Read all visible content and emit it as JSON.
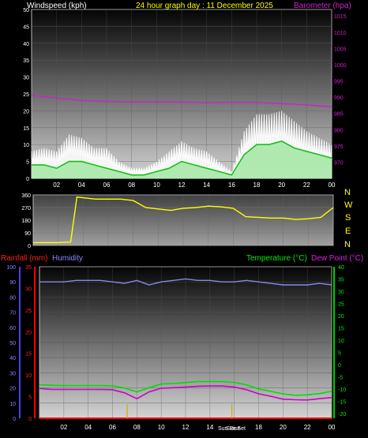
{
  "header": {
    "title_left": "Windspeed (kph)",
    "title_center": "24 hour graph day : 11 December 2025",
    "title_right": "Barometer (hpa)"
  },
  "bottom_header": {
    "rainfall": "Rainfall (mm)",
    "humidity": "Humidity",
    "temperature": "Temperature (°C)",
    "dewpoint": "Dew Point (°C)"
  },
  "colors": {
    "wind_gust": "#ffffff",
    "wind_avg": "#18c018",
    "wind_avg_fill": "#a8e8a8",
    "barometer": "#cc22cc",
    "direction": "#ffff00",
    "humidity": "#8888ee",
    "temperature": "#00dd00",
    "dewpoint": "#cc00cc",
    "rainfall": "#ff0000",
    "sun": "#ccaa00"
  },
  "x_ticks": [
    "02",
    "04",
    "06",
    "08",
    "10",
    "12",
    "14",
    "16",
    "18",
    "20",
    "22",
    "00"
  ],
  "compass": [
    "N",
    "W",
    "S",
    "E",
    "N"
  ],
  "sun_labels": {
    "rise": "Sun Rise",
    "set": "Sun Set"
  },
  "chart_data": [
    {
      "type": "line",
      "name": "wind",
      "y_axis": {
        "label": "Windspeed (kph)",
        "range": [
          0,
          50
        ],
        "ticks": [
          0,
          5,
          10,
          15,
          20,
          25,
          30,
          35,
          40,
          45,
          50
        ]
      },
      "y2_axis": {
        "label": "Barometer (hpa)",
        "range": [
          965,
          1017
        ],
        "ticks": [
          970,
          975,
          980,
          985,
          990,
          995,
          1000,
          1005,
          1010,
          1015
        ]
      },
      "x_range_hours": [
        0,
        24
      ],
      "series": [
        {
          "name": "gust",
          "x": [
            0,
            1,
            2,
            3,
            4,
            5,
            6,
            7,
            8,
            9,
            10,
            11,
            12,
            13,
            14,
            15,
            16,
            17,
            18,
            19,
            20,
            21,
            22,
            23,
            24
          ],
          "y": [
            8,
            9,
            8,
            13,
            12,
            9,
            9,
            5,
            3,
            3,
            5,
            8,
            11,
            9,
            8,
            5,
            2,
            14,
            19,
            19,
            20,
            17,
            14,
            12,
            10
          ]
        },
        {
          "name": "average",
          "x": [
            0,
            1,
            2,
            3,
            4,
            5,
            6,
            7,
            8,
            9,
            10,
            11,
            12,
            13,
            14,
            15,
            16,
            17,
            18,
            19,
            20,
            21,
            22,
            23,
            24
          ],
          "y": [
            4,
            4,
            3,
            5,
            5,
            4,
            3,
            2,
            1,
            1,
            2,
            3,
            5,
            4,
            3,
            2,
            1,
            7,
            10,
            10,
            11,
            9,
            8,
            7,
            6
          ]
        },
        {
          "name": "barometer",
          "x": [
            0,
            2,
            4,
            6,
            8,
            10,
            12,
            14,
            16,
            18,
            20,
            22,
            24
          ],
          "y": [
            990.5,
            989.7,
            989,
            988.7,
            988.5,
            988.6,
            988.5,
            988.3,
            988.4,
            988.4,
            988,
            987.6,
            987
          ]
        }
      ]
    },
    {
      "type": "line",
      "name": "direction",
      "y_axis": {
        "range": [
          0,
          360
        ],
        "ticks": [
          0,
          90,
          180,
          270,
          360
        ]
      },
      "x_range_hours": [
        0,
        24
      ],
      "series": [
        {
          "name": "direction",
          "x": [
            0,
            1,
            2,
            3,
            3.5,
            4,
            5,
            6,
            7,
            8,
            9,
            10,
            11,
            12,
            13,
            14,
            15,
            16,
            17,
            18,
            19,
            20,
            21,
            22,
            23,
            24
          ],
          "y": [
            20,
            20,
            20,
            25,
            345,
            340,
            330,
            330,
            330,
            320,
            270,
            260,
            250,
            265,
            270,
            280,
            275,
            265,
            205,
            200,
            195,
            195,
            185,
            190,
            200,
            270
          ]
        }
      ]
    },
    {
      "type": "line",
      "name": "temperature",
      "y_axis": {
        "label": "Rainfall (mm)",
        "range": [
          0,
          35
        ],
        "ticks": [
          0,
          5,
          10,
          15,
          20,
          25,
          30,
          35
        ]
      },
      "y_axis_humidity": {
        "label": "Humidity",
        "range": [
          0,
          100
        ],
        "ticks": [
          0,
          10,
          20,
          30,
          40,
          50,
          60,
          70,
          80,
          90,
          100
        ]
      },
      "y2_axis": {
        "label": "Temperature (°C)",
        "range": [
          -22,
          40
        ],
        "ticks": [
          -20,
          -15,
          -10,
          -5,
          0,
          5,
          10,
          15,
          20,
          25,
          30,
          35,
          40
        ]
      },
      "x_range_hours": [
        0,
        24
      ],
      "series": [
        {
          "name": "humidity",
          "x": [
            0,
            1,
            2,
            3,
            4,
            5,
            6,
            7,
            8,
            9,
            10,
            11,
            12,
            13,
            14,
            15,
            16,
            17,
            18,
            19,
            20,
            21,
            22,
            23,
            24
          ],
          "y": [
            90,
            90,
            90,
            91,
            91,
            91,
            90,
            89,
            91,
            88,
            90,
            91,
            92,
            91,
            91,
            90,
            90,
            91,
            90,
            89,
            88,
            88,
            88,
            89,
            88
          ]
        },
        {
          "name": "temperature",
          "x": [
            0,
            1,
            2,
            3,
            4,
            5,
            6,
            7,
            8,
            9,
            10,
            11,
            12,
            13,
            14,
            15,
            16,
            17,
            18,
            19,
            20,
            21,
            22,
            23,
            24
          ],
          "y": [
            -8.3,
            -8.5,
            -8.6,
            -8.6,
            -8.6,
            -8.6,
            -8.7,
            -9.6,
            -11.2,
            -9.5,
            -8,
            -7.8,
            -7.4,
            -7,
            -7,
            -7,
            -7.3,
            -8.3,
            -10,
            -11,
            -12,
            -12.6,
            -12.4,
            -11.9,
            -11
          ]
        },
        {
          "name": "dewpoint",
          "x": [
            0,
            1,
            2,
            3,
            4,
            5,
            6,
            7,
            8,
            9,
            10,
            11,
            12,
            13,
            14,
            15,
            16,
            17,
            18,
            19,
            20,
            21,
            22,
            23,
            24
          ],
          "y": [
            -9.8,
            -10.2,
            -10.2,
            -10.2,
            -10.2,
            -10.2,
            -10.3,
            -11.6,
            -14,
            -11.2,
            -9.7,
            -9.5,
            -9.2,
            -8.9,
            -8.8,
            -8.8,
            -9.2,
            -10.3,
            -12,
            -13,
            -14.2,
            -14.4,
            -14.5,
            -14,
            -13.5
          ]
        },
        {
          "name": "rainfall",
          "x": [
            0,
            24
          ],
          "y": [
            0,
            0
          ]
        }
      ],
      "sunrise_hour": 7.2,
      "sunset_hour": 15.8
    }
  ]
}
